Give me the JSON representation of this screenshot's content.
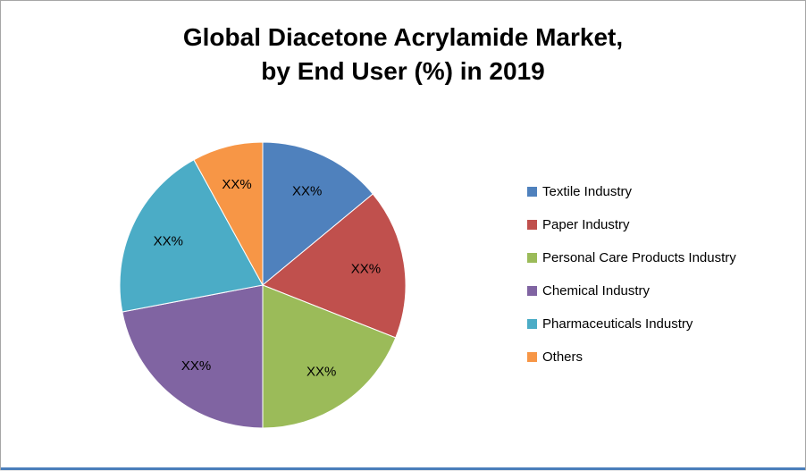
{
  "title": {
    "line1": "Global Diacetone Acrylamide Market,",
    "line2": "by End User (%) in 2019"
  },
  "chart_data": {
    "type": "pie",
    "title": "Global Diacetone Acrylamide Market, by End User (%) in 2019",
    "legend_position": "right",
    "start_angle_deg": 0,
    "direction": "clockwise",
    "values_masked": true,
    "slices": [
      {
        "label": "Textile Industry",
        "value_label": "XX%",
        "value_est_pct": 14,
        "color": "#4F81BD"
      },
      {
        "label": "Paper Industry",
        "value_label": "XX%",
        "value_est_pct": 17,
        "color": "#C0504D"
      },
      {
        "label": "Personal Care Products Industry",
        "value_label": "XX%",
        "value_est_pct": 19,
        "color": "#9BBB59"
      },
      {
        "label": "Chemical Industry",
        "value_label": "XX%",
        "value_est_pct": 22,
        "color": "#8064A2"
      },
      {
        "label": "Pharmaceuticals Industry",
        "value_label": "XX%",
        "value_est_pct": 20,
        "color": "#4BACC6"
      },
      {
        "label": "Others",
        "value_label": "XX%",
        "value_est_pct": 8,
        "color": "#F79646"
      }
    ]
  },
  "colors": {
    "background": "#FFFFFF",
    "frame_border": "#A6A6A6",
    "bottom_line": "#4A7EBB"
  }
}
